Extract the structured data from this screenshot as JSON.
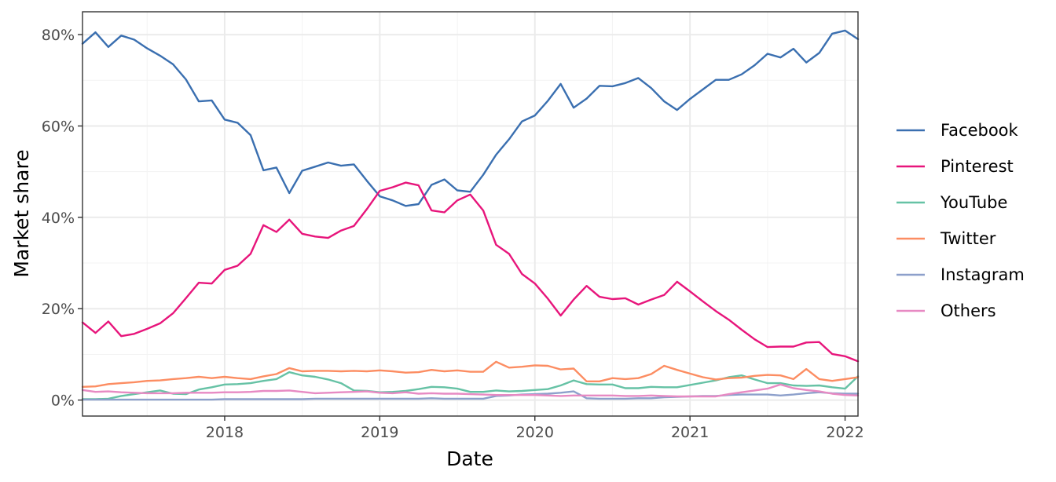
{
  "chart_data": {
    "type": "line",
    "xlabel": "Date",
    "ylabel": "Market share",
    "x_start": "2017-02",
    "x_end": "2022-02",
    "xlim": [
      "2017-02",
      "2022-02"
    ],
    "ylim": [
      -3.5,
      85
    ],
    "x_ticks": [
      {
        "date": "2018-01",
        "label": "2018"
      },
      {
        "date": "2019-01",
        "label": "2019"
      },
      {
        "date": "2020-01",
        "label": "2020"
      },
      {
        "date": "2021-01",
        "label": "2021"
      },
      {
        "date": "2022-01",
        "label": "2022"
      }
    ],
    "y_ticks": [
      {
        "value": 0,
        "label": "0%"
      },
      {
        "value": 20,
        "label": "20%"
      },
      {
        "value": 40,
        "label": "40%"
      },
      {
        "value": 60,
        "label": "60%"
      },
      {
        "value": 80,
        "label": "80%"
      }
    ],
    "grid": true,
    "legend_position": "right",
    "series": [
      {
        "name": "Facebook",
        "color": "#3a6fb0",
        "values": [
          78,
          80.5,
          77.3,
          79.8,
          78.9,
          77,
          75.4,
          73.5,
          70.2,
          65.4,
          65.6,
          61.4,
          60.7,
          58,
          50.3,
          50.9,
          45.3,
          50.2,
          51.1,
          52,
          51.3,
          51.6,
          48,
          44.6,
          43.7,
          42.5,
          42.9,
          47.1,
          48.3,
          45.9,
          45.6,
          49.3,
          53.7,
          57.1,
          61,
          62.3,
          65.5,
          69.2,
          64,
          66,
          68.8,
          68.7,
          69.4,
          70.5,
          68.3,
          65.4,
          63.5,
          65.9,
          68,
          70.1,
          70.1,
          71.3,
          73.3,
          75.8,
          75,
          76.9,
          73.9,
          76,
          80.2,
          80.9,
          79
        ]
      },
      {
        "name": "Pinterest",
        "color": "#e7157b",
        "values": [
          17,
          14.7,
          17.2,
          14,
          14.5,
          15.6,
          16.8,
          19,
          22.3,
          25.7,
          25.5,
          28.5,
          29.4,
          32,
          38.3,
          36.8,
          39.5,
          36.4,
          35.8,
          35.5,
          37.1,
          38.1,
          41.8,
          45.8,
          46.6,
          47.6,
          47,
          41.5,
          41.1,
          43.7,
          45,
          41.5,
          34,
          32,
          27.6,
          25.5,
          22.2,
          18.5,
          22,
          25,
          22.6,
          22.1,
          22.3,
          20.9,
          22,
          23,
          25.9,
          23.8,
          21.6,
          19.5,
          17.6,
          15.4,
          13.3,
          11.6,
          11.7,
          11.7,
          12.6,
          12.7,
          10.1,
          9.6,
          8.5
        ]
      },
      {
        "name": "YouTube",
        "color": "#66c2a5",
        "values": [
          0.2,
          0.2,
          0.3,
          0.9,
          1.3,
          1.7,
          2.1,
          1.4,
          1.3,
          2.3,
          2.8,
          3.4,
          3.5,
          3.7,
          4.2,
          4.6,
          6.1,
          5.4,
          5.1,
          4.5,
          3.7,
          2.1,
          2,
          1.7,
          1.8,
          2,
          2.4,
          2.9,
          2.8,
          2.5,
          1.8,
          1.8,
          2.1,
          1.9,
          2,
          2.2,
          2.4,
          3.2,
          4.3,
          3.5,
          3.4,
          3.4,
          2.6,
          2.6,
          2.9,
          2.8,
          2.8,
          3.3,
          3.8,
          4.3,
          5,
          5.4,
          4.5,
          3.7,
          3.7,
          3.2,
          3.1,
          3.2,
          2.8,
          2.5,
          5.2
        ]
      },
      {
        "name": "Twitter",
        "color": "#fc8d62",
        "values": [
          2.9,
          3,
          3.5,
          3.7,
          3.9,
          4.2,
          4.3,
          4.6,
          4.8,
          5.1,
          4.8,
          5.1,
          4.8,
          4.6,
          5.2,
          5.7,
          7,
          6.3,
          6.4,
          6.4,
          6.3,
          6.4,
          6.3,
          6.5,
          6.3,
          6,
          6.1,
          6.6,
          6.3,
          6.5,
          6.2,
          6.2,
          8.4,
          7.1,
          7.3,
          7.6,
          7.5,
          6.7,
          6.9,
          4.1,
          4.1,
          4.8,
          4.6,
          4.8,
          5.7,
          7.5,
          6.6,
          5.8,
          5,
          4.5,
          4.8,
          4.9,
          5.3,
          5.5,
          5.4,
          4.6,
          6.8,
          4.6,
          4.2,
          4.6,
          5
        ]
      },
      {
        "name": "Instagram",
        "color": "#8da0cb",
        "values": [
          0.1,
          0.1,
          0.1,
          0.1,
          0.1,
          0.1,
          0.1,
          0.1,
          0.1,
          0.1,
          0.1,
          0.2,
          0.2,
          0.2,
          0.2,
          0.2,
          0.2,
          0.2,
          0.3,
          0.3,
          0.3,
          0.3,
          0.3,
          0.3,
          0.3,
          0.3,
          0.3,
          0.4,
          0.3,
          0.3,
          0.3,
          0.3,
          0.9,
          1,
          1.2,
          1.3,
          1.4,
          1.6,
          1.9,
          0.4,
          0.3,
          0.3,
          0.3,
          0.4,
          0.4,
          0.6,
          0.7,
          0.8,
          0.9,
          0.9,
          1.1,
          1.2,
          1.2,
          1.2,
          1,
          1.2,
          1.5,
          1.7,
          1.5,
          1.4,
          1.4
        ]
      },
      {
        "name": "Others",
        "color": "#e78ac3",
        "values": [
          2.2,
          1.8,
          1.9,
          1.7,
          1.6,
          1.5,
          1.5,
          1.5,
          1.6,
          1.6,
          1.6,
          1.7,
          1.7,
          1.8,
          2,
          2,
          2.1,
          1.8,
          1.5,
          1.6,
          1.7,
          1.8,
          1.9,
          1.6,
          1.5,
          1.7,
          1.4,
          1.5,
          1.4,
          1.4,
          1.3,
          1.2,
          1.1,
          1.1,
          1.1,
          1.1,
          1,
          0.9,
          1,
          1,
          1,
          1,
          0.9,
          0.9,
          1,
          0.9,
          0.8,
          0.8,
          0.8,
          0.8,
          1.3,
          1.7,
          2.1,
          2.5,
          3.4,
          2.6,
          2.2,
          1.9,
          1.4,
          1.1,
          1
        ]
      }
    ]
  }
}
